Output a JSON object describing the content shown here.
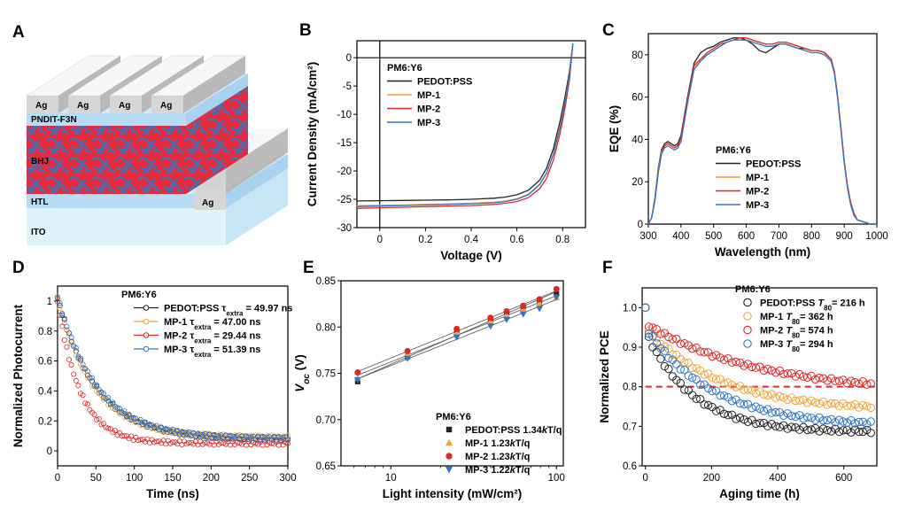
{
  "panel_labels": [
    "A",
    "B",
    "C",
    "D",
    "E",
    "F"
  ],
  "colors": {
    "PEDOT:PSS": "#222222",
    "MP-1": "#f2a43a",
    "MP-2": "#e02727",
    "MP-3": "#2f74c8",
    "ITO": "#dff3fb",
    "HTL": "#b7ddf4",
    "BHJ": "#e8293a",
    "BHJ_domains": "#4d6bb0",
    "PNDIT": "#b7ddf4",
    "Ag": "#d9d9d9",
    "ref_line": "#e02727"
  },
  "device": {
    "layers": [
      "ITO",
      "HTL",
      "BHJ",
      "PNDIT-F3N"
    ],
    "electrode": "Ag"
  },
  "chart_data": [
    {
      "id": "B",
      "type": "line",
      "xlabel": "Voltage (V)",
      "ylabel": "Current Density (mA/cm²)",
      "xlim": [
        -0.1,
        0.9
      ],
      "ylim": [
        -30,
        3
      ],
      "xticks": [
        0,
        0.2,
        0.4,
        0.6,
        0.8
      ],
      "xtick_labels": [
        "0",
        "0.2",
        "0.4",
        "0.6",
        "0.8"
      ],
      "yticks": [
        0,
        -5,
        -10,
        -15,
        -20,
        -25,
        -30
      ],
      "legend_title": "PM6:Y6",
      "x": [
        -0.1,
        0,
        0.1,
        0.2,
        0.3,
        0.4,
        0.5,
        0.55,
        0.6,
        0.65,
        0.7,
        0.73,
        0.76,
        0.79,
        0.81,
        0.83,
        0.845
      ],
      "series": [
        {
          "name": "PEDOT:PSS",
          "values": [
            -25.3,
            -25.25,
            -25.2,
            -25.15,
            -25.1,
            -25.0,
            -24.8,
            -24.6,
            -24.2,
            -23.4,
            -21.6,
            -19.5,
            -16.0,
            -11.0,
            -7.0,
            -2.5,
            2.5
          ]
        },
        {
          "name": "MP-1",
          "values": [
            -26.1,
            -26.05,
            -26.0,
            -25.9,
            -25.8,
            -25.7,
            -25.5,
            -25.3,
            -24.9,
            -24.1,
            -22.3,
            -20.3,
            -16.9,
            -12.0,
            -8.0,
            -3.2,
            2.5
          ]
        },
        {
          "name": "MP-2",
          "values": [
            -26.6,
            -26.5,
            -26.4,
            -26.3,
            -26.2,
            -26.1,
            -25.9,
            -25.7,
            -25.4,
            -24.7,
            -23.1,
            -21.3,
            -18.0,
            -13.2,
            -9.0,
            -4.0,
            2.5
          ]
        },
        {
          "name": "MP-3",
          "values": [
            -26.3,
            -26.2,
            -26.1,
            -26.0,
            -25.9,
            -25.8,
            -25.6,
            -25.4,
            -25.0,
            -24.2,
            -22.4,
            -20.4,
            -17.0,
            -12.2,
            -8.2,
            -3.4,
            2.5
          ]
        }
      ]
    },
    {
      "id": "C",
      "type": "line",
      "xlabel": "Wavelength (nm)",
      "ylabel": "EQE (%)",
      "xlim": [
        300,
        1000
      ],
      "ylim": [
        0,
        90
      ],
      "xticks": [
        300,
        400,
        500,
        600,
        700,
        800,
        900,
        1000
      ],
      "yticks": [
        0,
        20,
        40,
        60,
        80
      ],
      "legend_title": "PM6:Y6",
      "x": [
        300,
        310,
        320,
        330,
        340,
        350,
        360,
        370,
        380,
        390,
        400,
        420,
        440,
        460,
        480,
        500,
        520,
        540,
        560,
        580,
        600,
        620,
        640,
        660,
        680,
        700,
        720,
        740,
        760,
        780,
        800,
        820,
        840,
        860,
        870,
        880,
        890,
        900,
        910,
        920,
        930,
        940,
        960,
        980,
        1000
      ],
      "series": [
        {
          "name": "PEDOT:PSS",
          "values": [
            0,
            3,
            12,
            26,
            35,
            38,
            39,
            38,
            37,
            38,
            42,
            60,
            76,
            81,
            83,
            84,
            86,
            87,
            88,
            88,
            87,
            85,
            82,
            81,
            83,
            85,
            85,
            84,
            83,
            83,
            82,
            82,
            81,
            78,
            72,
            60,
            45,
            30,
            18,
            10,
            5,
            2,
            1,
            0,
            0
          ]
        },
        {
          "name": "MP-1",
          "values": [
            0,
            3,
            11,
            25,
            34,
            37,
            38,
            37,
            36,
            37,
            40,
            58,
            74,
            78,
            80,
            82,
            84,
            86,
            87,
            88,
            88,
            87,
            86,
            85,
            85,
            86,
            86,
            85,
            84,
            83,
            82,
            82,
            81,
            78,
            72,
            60,
            45,
            30,
            18,
            10,
            5,
            2,
            1,
            0,
            0
          ]
        },
        {
          "name": "MP-2",
          "values": [
            0,
            3,
            11,
            24,
            33,
            37,
            38,
            37,
            36,
            37,
            41,
            59,
            75,
            78,
            81,
            83,
            85,
            86,
            87,
            88,
            88,
            87,
            86,
            85,
            85,
            86,
            86,
            85,
            84,
            83,
            82,
            82,
            81,
            78,
            72,
            60,
            45,
            30,
            18,
            10,
            5,
            2,
            1,
            0,
            0
          ]
        },
        {
          "name": "MP-3",
          "values": [
            0,
            3,
            11,
            24,
            33,
            36,
            37,
            36,
            35,
            36,
            39,
            57,
            73,
            77,
            80,
            82,
            84,
            86,
            87,
            87,
            87,
            86,
            85,
            84,
            84,
            85,
            85,
            84,
            83,
            82,
            81,
            81,
            80,
            77,
            71,
            59,
            44,
            29,
            17,
            9,
            4,
            2,
            1,
            0,
            0
          ]
        }
      ]
    },
    {
      "id": "D",
      "type": "scatter",
      "xlabel": "Time (ns)",
      "ylabel": "Normalized Photocurrent",
      "xlim": [
        0,
        300
      ],
      "ylim": [
        -0.1,
        1.1
      ],
      "xticks": [
        0,
        50,
        100,
        150,
        200,
        250,
        300
      ],
      "yticks": [
        0,
        0.2,
        0.4,
        0.6,
        0.8,
        1
      ],
      "ytick_labels": [
        "0",
        "0.2",
        "0.4",
        "0.6",
        "0.8",
        "1"
      ],
      "legend_title": "PM6:Y6",
      "series": [
        {
          "name": "PEDOT:PSS",
          "tau_label": "49.97 ns",
          "tau": 49.97,
          "base": 0.08,
          "amp": 0.94
        },
        {
          "name": "MP-1",
          "tau_label": "47.00 ns",
          "tau": 47.0,
          "base": 0.09,
          "amp": 0.93
        },
        {
          "name": "MP-2",
          "tau_label": "29.44 ns",
          "tau": 29.44,
          "base": 0.05,
          "amp": 0.95
        },
        {
          "name": "MP-3",
          "tau_label": "51.39 ns",
          "tau": 51.39,
          "base": 0.08,
          "amp": 0.95
        }
      ]
    },
    {
      "id": "E",
      "type": "scatter",
      "xlabel": "Light intensity (mW/cm²)",
      "ylabel": "Voc (V)",
      "xscale": "log",
      "xlim": [
        5,
        110
      ],
      "ylim": [
        0.65,
        0.85
      ],
      "xticks": [
        10,
        100
      ],
      "xtick_labels": [
        "10",
        "100"
      ],
      "yticks": [
        0.65,
        0.7,
        0.75,
        0.8,
        0.85
      ],
      "ytick_labels": [
        "0.65",
        "0.70",
        "0.75",
        "0.80",
        "0.85"
      ],
      "legend_title": "PM6:Y6",
      "x": [
        6.3,
        12.6,
        25,
        40,
        50,
        63,
        79,
        100
      ],
      "series": [
        {
          "name": "PEDOT:PSS",
          "slope_label": "1.34kT/q",
          "marker": "square",
          "values": [
            0.741,
            0.768,
            0.795,
            0.809,
            0.816,
            0.822,
            0.828,
            0.836
          ]
        },
        {
          "name": "MP-1",
          "slope_label": "1.23kT/q",
          "marker": "triangle-up",
          "values": [
            0.745,
            0.771,
            0.794,
            0.806,
            0.813,
            0.819,
            0.826,
            0.832
          ]
        },
        {
          "name": "MP-2",
          "slope_label": "1.23kT/q",
          "marker": "circle",
          "values": [
            0.751,
            0.774,
            0.798,
            0.81,
            0.817,
            0.823,
            0.83,
            0.841
          ]
        },
        {
          "name": "MP-3",
          "slope_label": "1.22kT/q",
          "marker": "triangle-down",
          "values": [
            0.743,
            0.766,
            0.789,
            0.801,
            0.808,
            0.814,
            0.82,
            0.832
          ]
        }
      ]
    },
    {
      "id": "F",
      "type": "scatter",
      "xlabel": "Aging time (h)",
      "ylabel": "Normalized PCE",
      "xlim": [
        -10,
        700
      ],
      "ylim": [
        0.6,
        1.05
      ],
      "xticks": [
        0,
        200,
        400,
        600
      ],
      "yticks": [
        0.6,
        0.7,
        0.8,
        0.9,
        1.0
      ],
      "ytick_labels": [
        "0.6",
        "0.7",
        "0.8",
        "0.9",
        "1.0"
      ],
      "legend_title": "PM6:Y6",
      "reference_line": 0.8,
      "series": [
        {
          "name": "PEDOT:PSS",
          "t80": "216 h",
          "start": 0.94,
          "end": 0.685,
          "k": 0.007
        },
        {
          "name": "MP-1",
          "t80": "362 h",
          "start": 0.95,
          "end": 0.74,
          "k": 0.0045
        },
        {
          "name": "MP-2",
          "t80": "574 h",
          "start": 0.96,
          "end": 0.785,
          "k": 0.003
        },
        {
          "name": "MP-3",
          "t80": "294 h",
          "start": 0.95,
          "end": 0.7,
          "k": 0.005
        }
      ]
    }
  ]
}
